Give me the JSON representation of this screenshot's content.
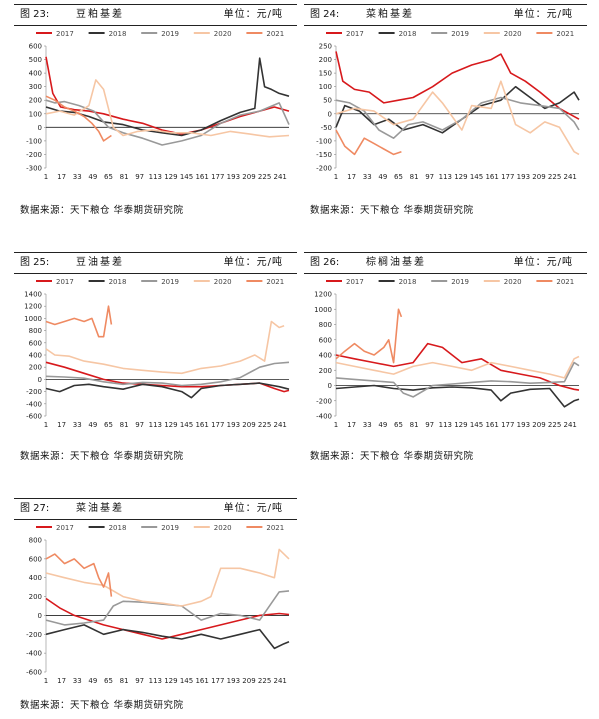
{
  "common": {
    "source": "数据来源：天下粮仓 华泰期货研究院",
    "unit": "单位：元/吨"
  },
  "chart_data": [
    {
      "type": "line",
      "figure_number": "图 23:",
      "title": "豆粕基差",
      "unit": "单位：元/吨",
      "source": "数据来源：天下粮仓 华泰期货研究院",
      "ylim": [
        -300,
        600
      ],
      "yticks": [
        600,
        500,
        400,
        300,
        200,
        100,
        0,
        -100,
        -200,
        -300
      ],
      "xlim": [
        1,
        250
      ],
      "xticks": [
        "1",
        "17",
        "33",
        "49",
        "65",
        "81",
        "97",
        "113",
        "129",
        "145",
        "161",
        "177",
        "193",
        "209",
        "225",
        "241"
      ],
      "legend_position": "top",
      "series": [
        {
          "name": "2017",
          "color": "#d7191c",
          "x": [
            1,
            8,
            16,
            30,
            45,
            60,
            80,
            100,
            120,
            140,
            160,
            180,
            200,
            220,
            235,
            250
          ],
          "values": [
            520,
            250,
            150,
            130,
            120,
            100,
            60,
            30,
            -20,
            -50,
            -20,
            30,
            80,
            120,
            150,
            120
          ]
        },
        {
          "name": "2018",
          "color": "#333333",
          "x": [
            1,
            15,
            30,
            45,
            60,
            80,
            100,
            120,
            140,
            160,
            180,
            200,
            215,
            220,
            225,
            232,
            240,
            250
          ],
          "values": [
            150,
            120,
            110,
            80,
            40,
            20,
            -20,
            -40,
            -60,
            -20,
            50,
            110,
            140,
            510,
            300,
            280,
            250,
            230
          ]
        },
        {
          "name": "2019",
          "color": "#999999",
          "x": [
            1,
            10,
            20,
            35,
            50,
            65,
            80,
            100,
            120,
            140,
            160,
            180,
            200,
            220,
            240,
            250
          ],
          "values": [
            200,
            180,
            190,
            160,
            120,
            0,
            -40,
            -80,
            -130,
            -100,
            -60,
            30,
            90,
            120,
            180,
            20
          ]
        },
        {
          "name": "2020",
          "color": "#f6c6a4",
          "x": [
            1,
            15,
            30,
            45,
            52,
            60,
            70,
            80,
            95,
            110,
            130,
            150,
            170,
            190,
            210,
            230,
            250
          ],
          "values": [
            100,
            120,
            90,
            160,
            350,
            280,
            0,
            -60,
            -30,
            -20,
            -40,
            -40,
            -60,
            -30,
            -50,
            -70,
            -60
          ]
        },
        {
          "name": "2021",
          "color": "#ef8a62",
          "x": [
            1,
            10,
            20,
            30,
            40,
            48,
            55,
            60,
            68
          ],
          "values": [
            230,
            200,
            150,
            120,
            80,
            30,
            -30,
            -100,
            -60
          ]
        }
      ]
    },
    {
      "type": "line",
      "figure_number": "图 24:",
      "title": "菜粕基差",
      "unit": "单位：元/吨",
      "source": "数据来源：天下粮仓 华泰期货研究院",
      "ylim": [
        -200,
        250
      ],
      "yticks": [
        250,
        200,
        150,
        100,
        50,
        0,
        -50,
        -100,
        -150,
        -200
      ],
      "xlim": [
        1,
        250
      ],
      "xticks": [
        "1",
        "17",
        "33",
        "49",
        "65",
        "81",
        "97",
        "113",
        "129",
        "145",
        "161",
        "177",
        "193",
        "209",
        "225",
        "241"
      ],
      "legend_position": "top",
      "series": [
        {
          "name": "2017",
          "color": "#d7191c",
          "x": [
            1,
            8,
            20,
            35,
            50,
            65,
            80,
            100,
            120,
            140,
            160,
            170,
            180,
            195,
            210,
            230,
            250
          ],
          "values": [
            230,
            120,
            90,
            80,
            40,
            50,
            60,
            100,
            150,
            180,
            200,
            220,
            150,
            120,
            80,
            20,
            -20
          ]
        },
        {
          "name": "2018",
          "color": "#333333",
          "x": [
            1,
            10,
            25,
            40,
            55,
            70,
            90,
            110,
            130,
            150,
            170,
            185,
            200,
            215,
            230,
            245,
            250
          ],
          "values": [
            -50,
            30,
            10,
            -40,
            -20,
            -60,
            -40,
            -70,
            -20,
            30,
            50,
            100,
            60,
            20,
            40,
            80,
            50
          ]
        },
        {
          "name": "2019",
          "color": "#999999",
          "x": [
            1,
            15,
            30,
            45,
            60,
            75,
            90,
            110,
            130,
            150,
            170,
            190,
            210,
            230,
            245,
            250
          ],
          "values": [
            50,
            40,
            10,
            -60,
            -90,
            -40,
            -30,
            -60,
            -20,
            40,
            60,
            40,
            30,
            20,
            -30,
            -60
          ]
        },
        {
          "name": "2020",
          "color": "#f6c6a4",
          "x": [
            1,
            20,
            40,
            60,
            80,
            100,
            110,
            130,
            140,
            160,
            170,
            185,
            200,
            215,
            230,
            245,
            250
          ],
          "values": [
            0,
            20,
            10,
            -40,
            -20,
            80,
            40,
            -60,
            30,
            20,
            120,
            -40,
            -70,
            -30,
            -50,
            -140,
            -150
          ]
        },
        {
          "name": "2021",
          "color": "#ef8a62",
          "x": [
            1,
            10,
            20,
            30,
            40,
            50,
            60,
            68
          ],
          "values": [
            -60,
            -120,
            -150,
            -90,
            -110,
            -130,
            -150,
            -140
          ]
        }
      ]
    },
    {
      "type": "line",
      "figure_number": "图 25:",
      "title": "豆油基差",
      "unit": "单位：元/吨",
      "source": "数据来源：天下粮仓 华泰期货研究院",
      "ylim": [
        -600,
        1400
      ],
      "yticks": [
        1400,
        1200,
        1000,
        800,
        600,
        400,
        200,
        0,
        -200,
        -400,
        -600
      ],
      "xlim": [
        1,
        250
      ],
      "xticks": [
        "1",
        "17",
        "33",
        "49",
        "65",
        "81",
        "97",
        "113",
        "129",
        "145",
        "161",
        "177",
        "193",
        "209",
        "225",
        "241"
      ],
      "legend_position": "top",
      "series": [
        {
          "name": "2017",
          "color": "#d7191c",
          "x": [
            1,
            20,
            40,
            60,
            80,
            100,
            120,
            140,
            160,
            180,
            200,
            220,
            235,
            245,
            250
          ],
          "values": [
            280,
            200,
            100,
            0,
            -60,
            -80,
            -100,
            -120,
            -120,
            -100,
            -80,
            -60,
            -150,
            -200,
            -180
          ]
        },
        {
          "name": "2018",
          "color": "#333333",
          "x": [
            1,
            15,
            30,
            45,
            60,
            80,
            100,
            120,
            140,
            150,
            160,
            180,
            200,
            220,
            240,
            250
          ],
          "values": [
            -150,
            -200,
            -100,
            -80,
            -120,
            -160,
            -80,
            -120,
            -200,
            -300,
            -150,
            -100,
            -80,
            -60,
            -120,
            -160
          ]
        },
        {
          "name": "2019",
          "color": "#999999",
          "x": [
            1,
            20,
            40,
            60,
            80,
            100,
            120,
            140,
            160,
            180,
            200,
            220,
            235,
            250
          ],
          "values": [
            50,
            40,
            20,
            -40,
            -80,
            -50,
            -60,
            -100,
            -80,
            -40,
            30,
            200,
            260,
            280
          ]
        },
        {
          "name": "2020",
          "color": "#f6c6a4",
          "x": [
            1,
            10,
            25,
            40,
            60,
            80,
            100,
            120,
            140,
            160,
            180,
            200,
            215,
            225,
            232,
            240,
            245
          ],
          "values": [
            500,
            400,
            380,
            300,
            250,
            180,
            150,
            120,
            100,
            180,
            220,
            300,
            400,
            300,
            950,
            850,
            880
          ]
        },
        {
          "name": "2021",
          "color": "#ef8a62",
          "x": [
            1,
            10,
            20,
            30,
            40,
            48,
            55,
            60,
            65,
            68
          ],
          "values": [
            950,
            900,
            950,
            1000,
            950,
            1000,
            700,
            700,
            1200,
            900
          ]
        }
      ]
    },
    {
      "type": "line",
      "figure_number": "图 26:",
      "title": "棕榈油基差",
      "unit": "单位：元/吨",
      "source": "数据来源：天下粮仓 华泰期货研究院",
      "ylim": [
        -400,
        1200
      ],
      "yticks": [
        1200,
        1000,
        800,
        600,
        400,
        200,
        0,
        -200,
        -400
      ],
      "xlim": [
        1,
        250
      ],
      "xticks": [
        "1",
        "17",
        "33",
        "49",
        "65",
        "81",
        "97",
        "113",
        "129",
        "145",
        "161",
        "177",
        "193",
        "209",
        "225",
        "241"
      ],
      "legend_position": "top",
      "series": [
        {
          "name": "2017",
          "color": "#d7191c",
          "x": [
            1,
            20,
            40,
            60,
            80,
            95,
            110,
            130,
            150,
            170,
            190,
            210,
            230,
            245,
            250
          ],
          "values": [
            400,
            350,
            300,
            250,
            300,
            550,
            500,
            300,
            350,
            200,
            150,
            100,
            0,
            -50,
            -60
          ]
        },
        {
          "name": "2018",
          "color": "#333333",
          "x": [
            1,
            20,
            40,
            60,
            80,
            100,
            120,
            140,
            160,
            170,
            180,
            200,
            220,
            235,
            245,
            250
          ],
          "values": [
            -40,
            -20,
            0,
            -40,
            -60,
            -30,
            -20,
            -30,
            -60,
            -200,
            -100,
            -50,
            -40,
            -280,
            -200,
            -180
          ]
        },
        {
          "name": "2019",
          "color": "#999999",
          "x": [
            1,
            20,
            40,
            60,
            70,
            80,
            100,
            120,
            140,
            160,
            180,
            200,
            220,
            235,
            245,
            250
          ],
          "values": [
            100,
            80,
            60,
            40,
            -100,
            -150,
            0,
            20,
            40,
            60,
            50,
            30,
            40,
            50,
            300,
            260
          ]
        },
        {
          "name": "2020",
          "color": "#f6c6a4",
          "x": [
            1,
            20,
            40,
            60,
            80,
            100,
            120,
            140,
            160,
            180,
            200,
            220,
            235,
            245,
            250
          ],
          "values": [
            300,
            250,
            200,
            150,
            250,
            300,
            250,
            200,
            300,
            250,
            200,
            150,
            100,
            350,
            380
          ]
        },
        {
          "name": "2021",
          "color": "#ef8a62",
          "x": [
            1,
            10,
            20,
            30,
            40,
            50,
            55,
            60,
            65,
            68
          ],
          "values": [
            350,
            450,
            550,
            450,
            400,
            500,
            600,
            300,
            1000,
            900
          ]
        }
      ]
    },
    {
      "type": "line",
      "figure_number": "图 27:",
      "title": "菜油基差",
      "unit": "单位：元/吨",
      "source": "数据来源：天下粮仓 华泰期货研究院",
      "ylim": [
        -600,
        800
      ],
      "yticks": [
        800,
        600,
        400,
        200,
        0,
        -200,
        -400,
        -600
      ],
      "xlim": [
        1,
        250
      ],
      "xticks": [
        "1",
        "17",
        "33",
        "49",
        "65",
        "81",
        "97",
        "113",
        "129",
        "145",
        "161",
        "177",
        "193",
        "209",
        "225",
        "241"
      ],
      "legend_position": "top",
      "series": [
        {
          "name": "2017",
          "color": "#d7191c",
          "x": [
            1,
            15,
            30,
            45,
            60,
            80,
            100,
            120,
            140,
            160,
            180,
            200,
            220,
            240,
            250
          ],
          "values": [
            180,
            80,
            0,
            -50,
            -100,
            -150,
            -200,
            -250,
            -200,
            -150,
            -100,
            -50,
            0,
            20,
            10
          ]
        },
        {
          "name": "2018",
          "color": "#333333",
          "x": [
            1,
            20,
            40,
            60,
            80,
            100,
            120,
            140,
            160,
            180,
            200,
            220,
            235,
            245,
            250
          ],
          "values": [
            -200,
            -150,
            -100,
            -200,
            -150,
            -180,
            -220,
            -250,
            -200,
            -250,
            -200,
            -150,
            -350,
            -300,
            -280
          ]
        },
        {
          "name": "2019",
          "color": "#999999",
          "x": [
            1,
            20,
            40,
            60,
            70,
            80,
            100,
            120,
            140,
            160,
            180,
            200,
            220,
            240,
            250
          ],
          "values": [
            -50,
            -100,
            -80,
            -50,
            100,
            150,
            140,
            120,
            100,
            -50,
            20,
            0,
            -50,
            250,
            260
          ]
        },
        {
          "name": "2020",
          "color": "#f6c6a4",
          "x": [
            1,
            20,
            40,
            60,
            80,
            100,
            120,
            140,
            160,
            170,
            180,
            200,
            220,
            235,
            240,
            250
          ],
          "values": [
            450,
            400,
            350,
            320,
            200,
            150,
            130,
            100,
            150,
            200,
            500,
            500,
            450,
            400,
            700,
            600
          ]
        },
        {
          "name": "2021",
          "color": "#ef8a62",
          "x": [
            1,
            10,
            20,
            30,
            40,
            50,
            55,
            60,
            65,
            68
          ],
          "values": [
            600,
            650,
            550,
            600,
            500,
            550,
            400,
            300,
            450,
            200
          ]
        }
      ]
    }
  ]
}
